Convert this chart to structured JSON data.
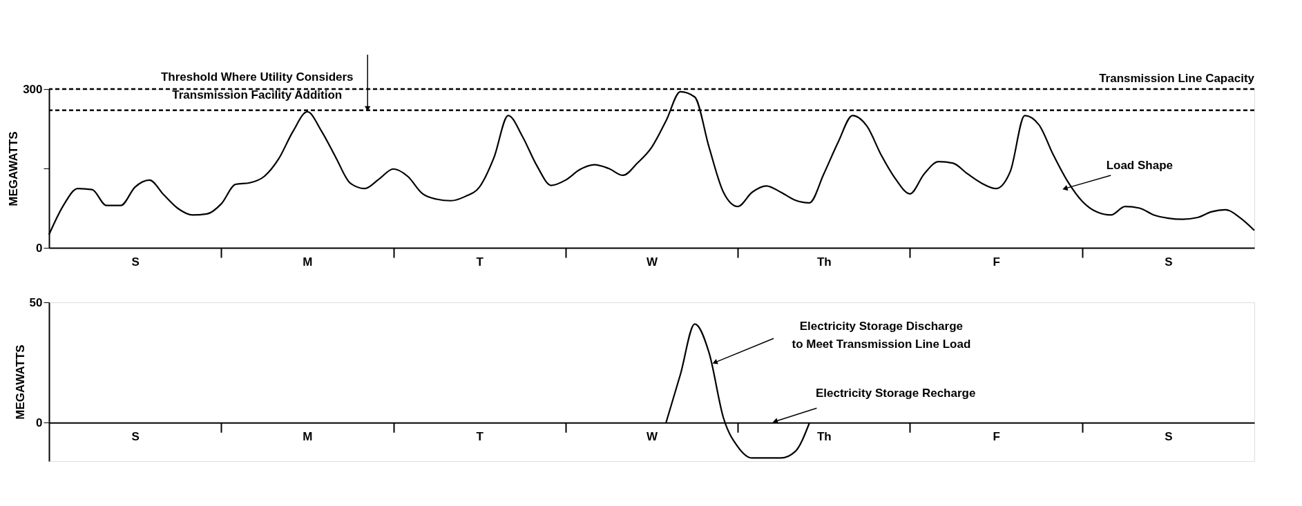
{
  "chart_data": [
    {
      "type": "line",
      "ylabel": "MEGAWATTS",
      "grid": false,
      "ylim": [
        0,
        300
      ],
      "categories": [
        null,
        null,
        null,
        null,
        null,
        null,
        "S",
        null,
        null,
        null,
        null,
        null,
        null,
        null,
        null,
        null,
        null,
        null,
        "M",
        null,
        null,
        null,
        null,
        null,
        null,
        null,
        null,
        null,
        null,
        null,
        "T",
        null,
        null,
        null,
        null,
        null,
        null,
        null,
        null,
        null,
        null,
        null,
        "W",
        null,
        null,
        null,
        null,
        null,
        null,
        null,
        null,
        null,
        null,
        null,
        "Th",
        null,
        null,
        null,
        null,
        null,
        null,
        null,
        null,
        null,
        null,
        null,
        "F",
        null,
        null,
        null,
        null,
        null,
        null,
        null,
        null,
        null,
        null,
        null,
        "S",
        null,
        null,
        null,
        null,
        null,
        null
      ],
      "yticks": [
        0,
        {
          "value": 150,
          "label": null
        },
        300
      ],
      "series": [
        {
          "color": "#000000",
          "line_style": "solid",
          "values": [
            25,
            80,
            112,
            110,
            80,
            80,
            115,
            128,
            100,
            74,
            62,
            64,
            83,
            120,
            123,
            135,
            168,
            220,
            257,
            220,
            170,
            122,
            112,
            130,
            149,
            135,
            103,
            92,
            89,
            97,
            115,
            170,
            250,
            210,
            155,
            118,
            128,
            148,
            157,
            150,
            137,
            160,
            190,
            240,
            295,
            285,
            190,
            105,
            78,
            105,
            117,
            105,
            90,
            85,
            140,
            200,
            250,
            230,
            175,
            130,
            102,
            140,
            163,
            160,
            140,
            122,
            112,
            145,
            250,
            232,
            175,
            125,
            88,
            68,
            62,
            78,
            75,
            62,
            56,
            54,
            57,
            68,
            72,
            57,
            33
          ]
        }
      ],
      "ref_lines": [
        {
          "axis": "y",
          "value": 300,
          "label": "Transmission Line Capacity",
          "line_style": "dashed",
          "color": "#000000"
        },
        {
          "axis": "y",
          "value": 260,
          "label": "Threshold Where Utility Considers\nTransmission Facility Addition",
          "line_style": "dashed",
          "color": "#000000"
        }
      ],
      "annotations": [
        "Load Shape"
      ]
    },
    {
      "type": "line",
      "ylabel": "MEGAWATTS",
      "grid": false,
      "ylim": [
        -16,
        50
      ],
      "categories": [
        null,
        null,
        null,
        null,
        null,
        null,
        "S",
        null,
        null,
        null,
        null,
        null,
        null,
        null,
        null,
        null,
        null,
        null,
        "M",
        null,
        null,
        null,
        null,
        null,
        null,
        null,
        null,
        null,
        null,
        null,
        "T",
        null,
        null,
        null,
        null,
        null,
        null,
        null,
        null,
        null,
        null,
        null,
        "W",
        null,
        null,
        null,
        null,
        null,
        null,
        null,
        null,
        null,
        null,
        null,
        "Th",
        null,
        null,
        null,
        null,
        null,
        null,
        null,
        null,
        null,
        null,
        null,
        "F",
        null,
        null,
        null,
        null,
        null,
        null,
        null,
        null,
        null,
        null,
        null,
        "S",
        null,
        null,
        null,
        null,
        null,
        null
      ],
      "yticks": [
        0,
        50
      ],
      "series": [
        {
          "color": "#000000",
          "line_style": "solid",
          "values": [
            null,
            null,
            null,
            null,
            null,
            null,
            null,
            null,
            null,
            null,
            null,
            null,
            null,
            null,
            null,
            null,
            null,
            null,
            null,
            null,
            null,
            null,
            null,
            null,
            null,
            null,
            null,
            null,
            null,
            null,
            null,
            null,
            null,
            null,
            null,
            null,
            null,
            null,
            null,
            null,
            null,
            null,
            null,
            0,
            20,
            41,
            29,
            2,
            -10,
            -14.7,
            -14.7,
            -14.7,
            -12,
            0,
            null,
            null,
            null,
            null,
            null,
            null,
            null,
            null,
            null,
            null,
            null,
            null,
            null,
            null,
            null,
            null,
            null,
            null,
            null,
            null,
            null,
            null,
            null,
            null,
            null,
            null,
            null,
            null,
            null,
            null,
            null
          ]
        }
      ],
      "annotations": [
        "Electricity Storage Discharge\nto Meet Transmission Line Load",
        "Electricity Storage Recharge"
      ]
    }
  ]
}
